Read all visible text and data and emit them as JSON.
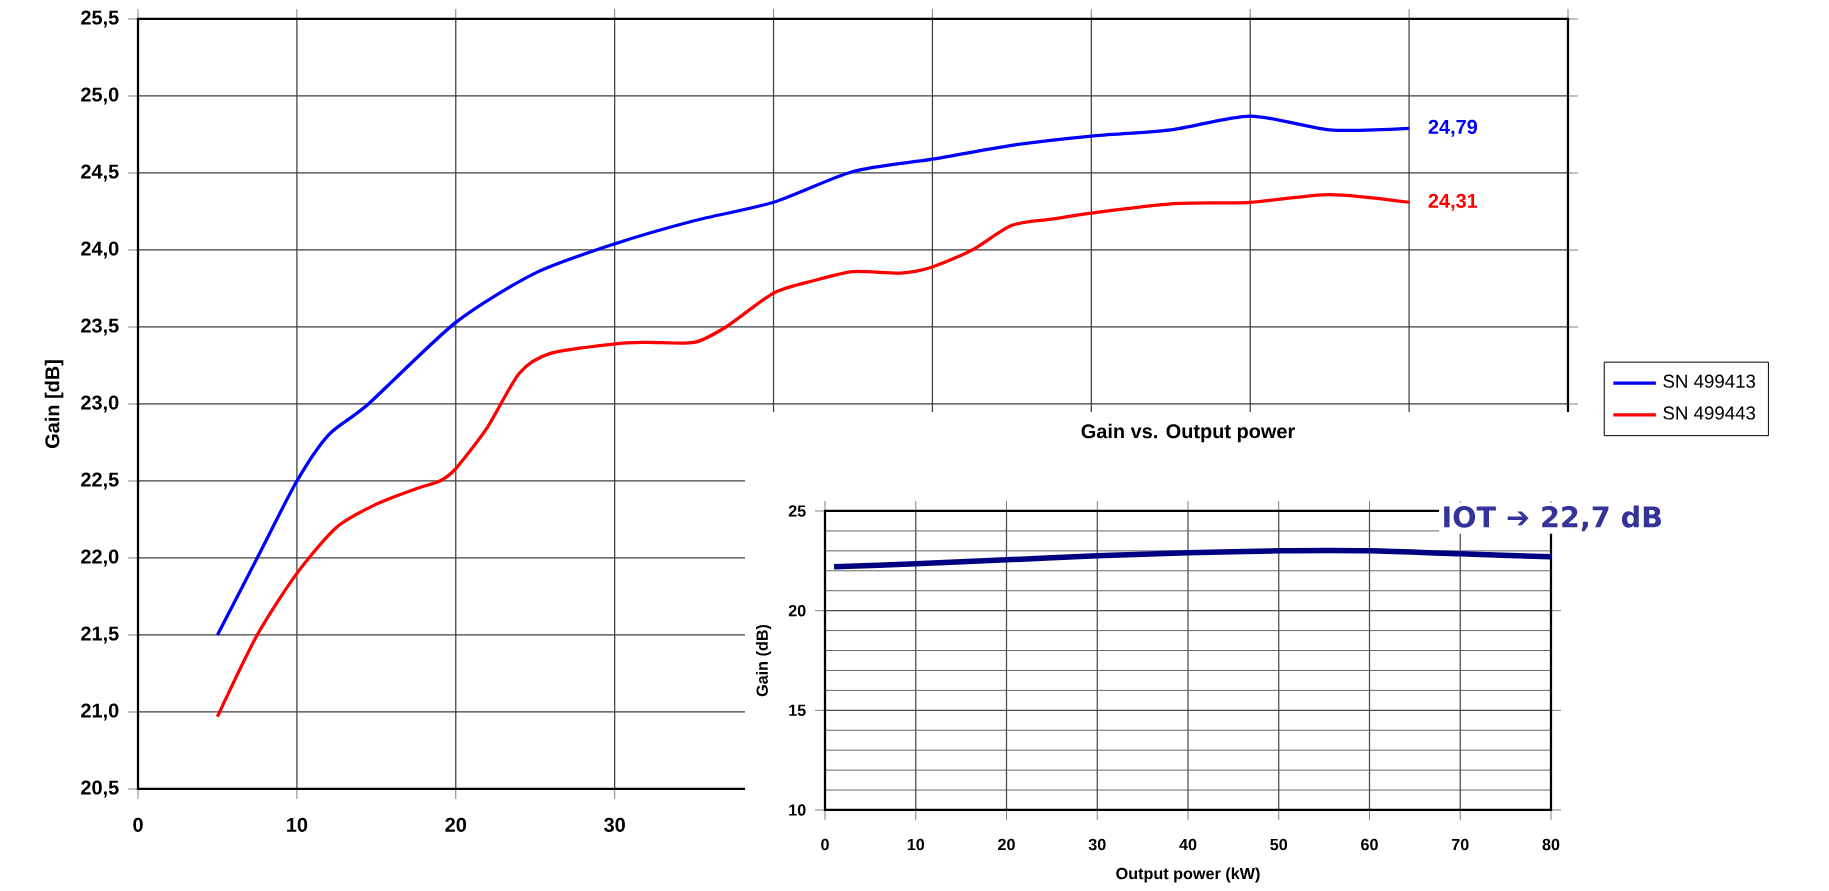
{
  "chart_data": [
    {
      "type": "line",
      "ylabel": "Gain [dB]",
      "xlim": [
        0,
        90
      ],
      "ylim": [
        20.5,
        25.5
      ],
      "xticks": [
        0,
        10,
        20,
        30,
        {
          "value": 40,
          "label": null
        },
        {
          "value": 50,
          "label": null
        },
        {
          "value": 60,
          "label": null
        },
        {
          "value": 70,
          "label": null
        },
        {
          "value": 80,
          "label": null
        },
        {
          "value": 90,
          "label": null
        }
      ],
      "yticks": [
        {
          "value": 20.5,
          "label": "20,5"
        },
        {
          "value": 21,
          "label": "21,0"
        },
        {
          "value": 21.5,
          "label": "21,5"
        },
        {
          "value": 22,
          "label": "22,0"
        },
        {
          "value": 22.5,
          "label": "22,5"
        },
        {
          "value": 23,
          "label": "23,0"
        },
        {
          "value": 23.5,
          "label": "23,5"
        },
        {
          "value": 24,
          "label": "24,0"
        },
        {
          "value": 24.5,
          "label": "24,5"
        },
        {
          "value": 25,
          "label": "25,0"
        },
        {
          "value": 25.5,
          "label": "25,5"
        }
      ],
      "grid": true,
      "legend": "right",
      "marker": "none",
      "line_style": "solid",
      "series": [
        {
          "name": "SN 499413",
          "color": "#0000ff",
          "x": [
            5,
            7.5,
            10,
            12,
            14.5,
            20,
            25,
            30,
            35,
            40,
            45,
            50,
            55,
            60,
            65,
            70,
            75,
            80
          ],
          "values": [
            21.5,
            22.0,
            22.5,
            22.8,
            23.0,
            23.53,
            23.85,
            24.04,
            24.19,
            24.31,
            24.51,
            24.59,
            24.68,
            24.74,
            24.78,
            24.87,
            24.78,
            24.79
          ],
          "value_labels": [
            null,
            null,
            null,
            null,
            null,
            null,
            null,
            null,
            null,
            null,
            null,
            null,
            null,
            null,
            null,
            null,
            null,
            "24,79"
          ]
        },
        {
          "name": "SN 499443",
          "color": "#ff0000",
          "x": [
            5,
            7.5,
            10,
            12.5,
            15,
            17.5,
            19,
            20,
            22,
            24,
            26,
            30,
            32,
            35,
            37,
            40,
            42.5,
            45,
            48,
            50,
            52.5,
            55,
            57.5,
            60,
            65,
            70,
            75,
            80
          ],
          "values": [
            20.97,
            21.5,
            21.9,
            22.2,
            22.35,
            22.45,
            22.5,
            22.58,
            22.85,
            23.2,
            23.33,
            23.39,
            23.4,
            23.4,
            23.5,
            23.72,
            23.8,
            23.86,
            23.85,
            23.89,
            24.0,
            24.16,
            24.2,
            24.24,
            24.3,
            24.31,
            24.36,
            24.31
          ],
          "value_labels": [
            null,
            null,
            null,
            null,
            null,
            null,
            null,
            null,
            null,
            null,
            null,
            null,
            null,
            null,
            null,
            null,
            null,
            null,
            null,
            null,
            null,
            null,
            null,
            null,
            null,
            null,
            null,
            "24,31"
          ]
        }
      ]
    },
    {
      "type": "line",
      "title": "Gain vs. Output power",
      "xlabel": "Output power (kW)",
      "ylabel": "Gain (dB)",
      "xlim": [
        0,
        80
      ],
      "ylim": [
        10,
        25
      ],
      "xticks": [
        0,
        10,
        20,
        30,
        40,
        50,
        60,
        70,
        80
      ],
      "yticks": [
        10,
        15,
        20,
        25
      ],
      "grid": true,
      "marker": "none",
      "line_style": "solid",
      "annotations": [
        {
          "text": "IOT ➔ 22,7 dB",
          "x": 80,
          "y": 22.7
        }
      ],
      "series": [
        {
          "color": "#000080",
          "x": [
            1,
            10,
            20,
            30,
            40,
            50,
            60,
            70,
            80
          ],
          "values": [
            22.2,
            22.35,
            22.55,
            22.75,
            22.9,
            23.0,
            23.0,
            22.85,
            22.7
          ]
        }
      ]
    }
  ]
}
